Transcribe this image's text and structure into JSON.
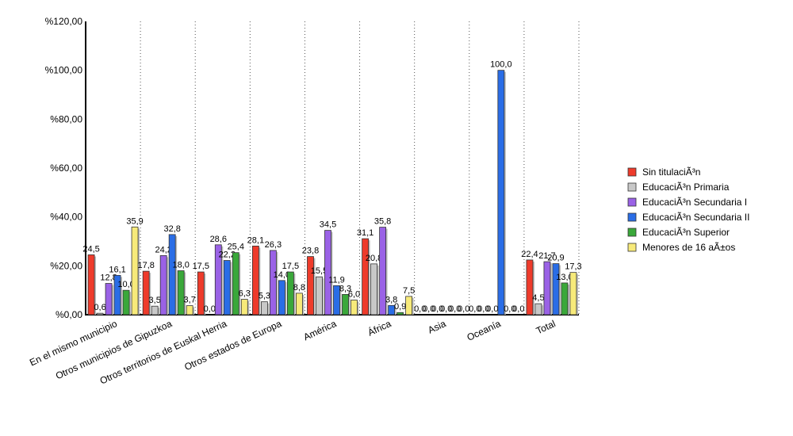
{
  "chart_data": {
    "type": "bar",
    "categories": [
      "En el mismo municipio",
      "Otros municipios de Gipuzkoa",
      "Otros territorios de Euskal Herria",
      "Otros estados de Europa",
      "América",
      "África",
      "Asia",
      "Oceanía",
      "Total"
    ],
    "series": [
      {
        "name": "Sin titulaciÃ³n",
        "color": "#ee3b2b",
        "values": [
          24.5,
          17.8,
          17.5,
          28.1,
          23.8,
          31.1,
          0.0,
          0.0,
          22.4
        ]
      },
      {
        "name": "EducaciÃ³n Primaria",
        "color": "#c8c8c8",
        "values": [
          0.6,
          3.5,
          0.0,
          5.3,
          15.5,
          20.8,
          0.0,
          0.0,
          4.5
        ]
      },
      {
        "name": "EducaciÃ³n Secundaria I",
        "color": "#9a62e6",
        "values": [
          12.8,
          24.2,
          28.6,
          26.3,
          34.5,
          35.8,
          0.0,
          0.0,
          21.7
        ]
      },
      {
        "name": "EducaciÃ³n Secundaria II",
        "color": "#2a6de6",
        "values": [
          16.1,
          32.8,
          22.2,
          14.0,
          11.9,
          3.8,
          0.0,
          100.0,
          20.9
        ]
      },
      {
        "name": "EducaciÃ³n Superior",
        "color": "#3aa83a",
        "values": [
          10.0,
          18.0,
          25.4,
          17.5,
          8.3,
          0.9,
          0.0,
          0.0,
          13.0
        ]
      },
      {
        "name": "Menores de 16 aÃ±os",
        "color": "#f7ea7a",
        "values": [
          35.9,
          3.7,
          6.3,
          8.8,
          6.0,
          7.5,
          0.0,
          0.0,
          17.3
        ]
      }
    ],
    "y_ticks": [
      "%0,00",
      "%20,00",
      "%40,00",
      "%60,00",
      "%80,00",
      "%100,00",
      "%120,00"
    ],
    "ylim": [
      0,
      120
    ],
    "grid": "vertical dotted",
    "legend_position": "right"
  }
}
